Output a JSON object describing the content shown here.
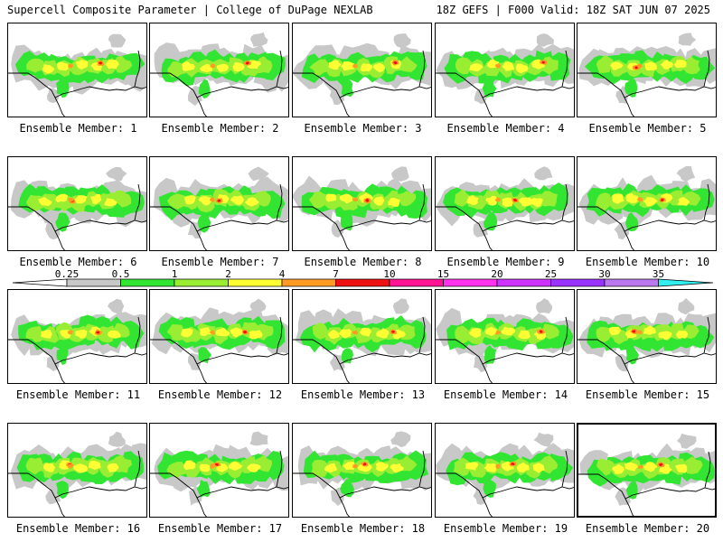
{
  "header": {
    "left": "Supercell Composite Parameter | College of DuPage NEXLAB",
    "right": "18Z GEFS | F000 Valid: 18Z SAT JUN 07 2025"
  },
  "panels": [
    {
      "label": "Ensemble Member: 1"
    },
    {
      "label": "Ensemble Member: 2"
    },
    {
      "label": "Ensemble Member: 3"
    },
    {
      "label": "Ensemble Member: 4"
    },
    {
      "label": "Ensemble Member: 5"
    },
    {
      "label": "Ensemble Member: 6"
    },
    {
      "label": "Ensemble Member: 7"
    },
    {
      "label": "Ensemble Member: 8"
    },
    {
      "label": "Ensemble Member: 9"
    },
    {
      "label": "Ensemble Member: 10"
    },
    {
      "label": "Ensemble Member: 11"
    },
    {
      "label": "Ensemble Member: 12"
    },
    {
      "label": "Ensemble Member: 13"
    },
    {
      "label": "Ensemble Member: 14"
    },
    {
      "label": "Ensemble Member: 15"
    },
    {
      "label": "Ensemble Member: 16"
    },
    {
      "label": "Ensemble Member: 17"
    },
    {
      "label": "Ensemble Member: 18"
    },
    {
      "label": "Ensemble Member: 19"
    },
    {
      "label": "Ensemble Member: 20",
      "selected": true
    }
  ],
  "legend": {
    "labels": [
      "0.25",
      "0.5",
      "1",
      "2",
      "4",
      "7",
      "10",
      "15",
      "20",
      "25",
      "30",
      "35"
    ],
    "colors": [
      "#ffffff",
      "#c8c8c8",
      "#33e533",
      "#99ee33",
      "#ffff33",
      "#ff9a22",
      "#ee1111",
      "#ff1493",
      "#ff33ee",
      "#cc33ff",
      "#9933ff",
      "#bb77ee",
      "#33eeee"
    ]
  },
  "field_colors": {
    "gray": "#c8c8c8",
    "green": "#33e533",
    "lime": "#99ee33",
    "yellow": "#ffff33",
    "orange": "#ff9a22",
    "red": "#ee1111"
  }
}
